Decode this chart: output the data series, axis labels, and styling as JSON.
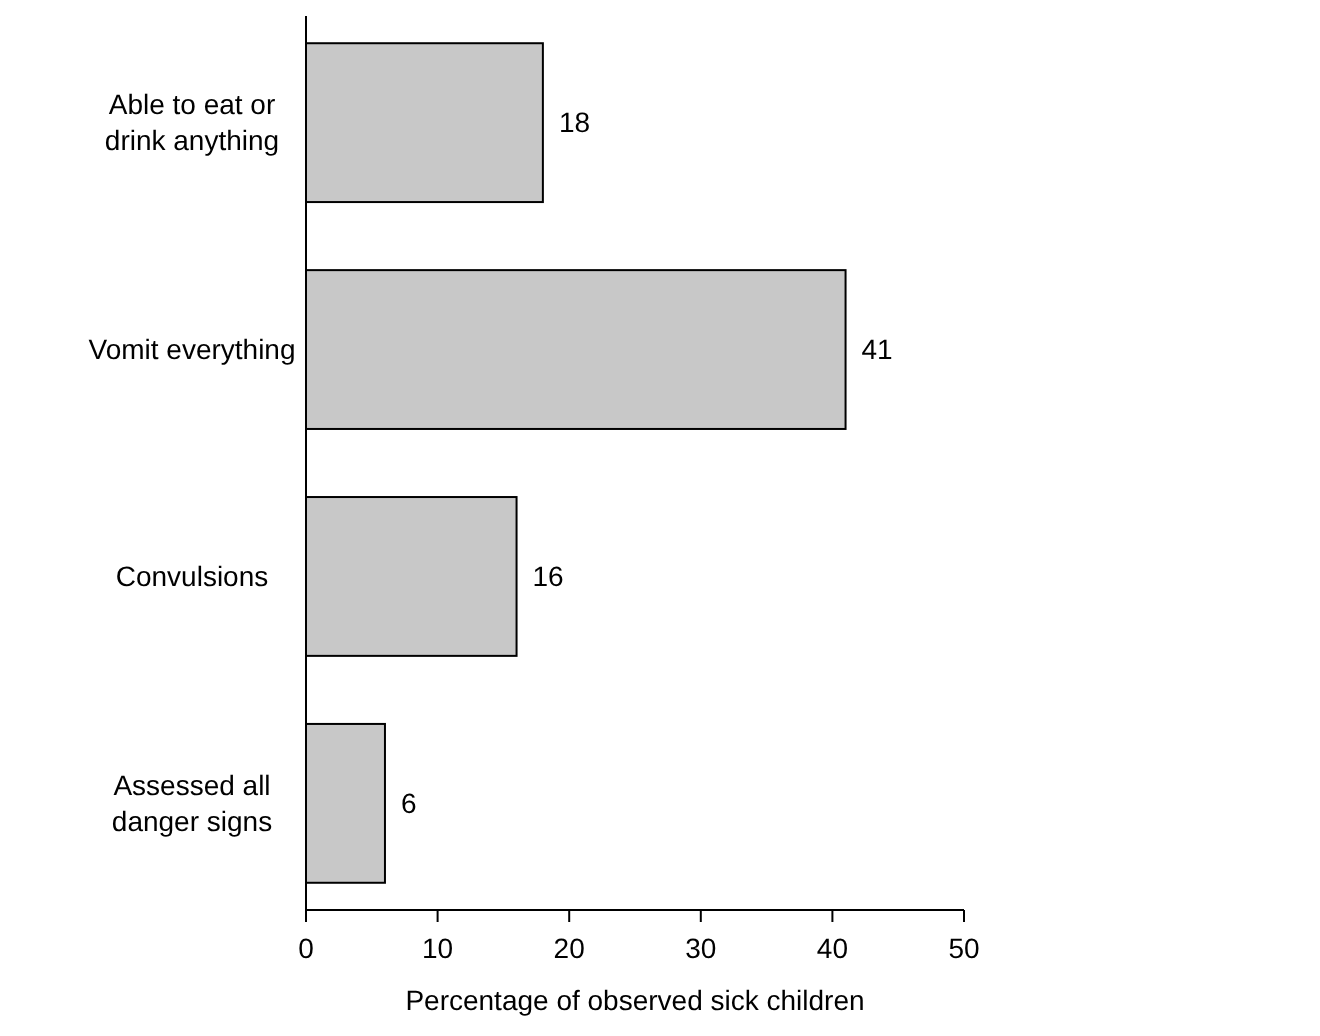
{
  "chart_data": {
    "type": "bar",
    "orientation": "horizontal",
    "categories": [
      "Able to eat or drink anything",
      "Vomit everything",
      "Convulsions",
      "Assessed all danger signs"
    ],
    "values": [
      18,
      41,
      16,
      6
    ],
    "color": "#c8c8c8",
    "xlabel": "Percentage of observed sick children",
    "xlim": [
      0,
      50
    ],
    "xticks": [
      0,
      10,
      20,
      30,
      40,
      50
    ],
    "data_labels": true
  }
}
